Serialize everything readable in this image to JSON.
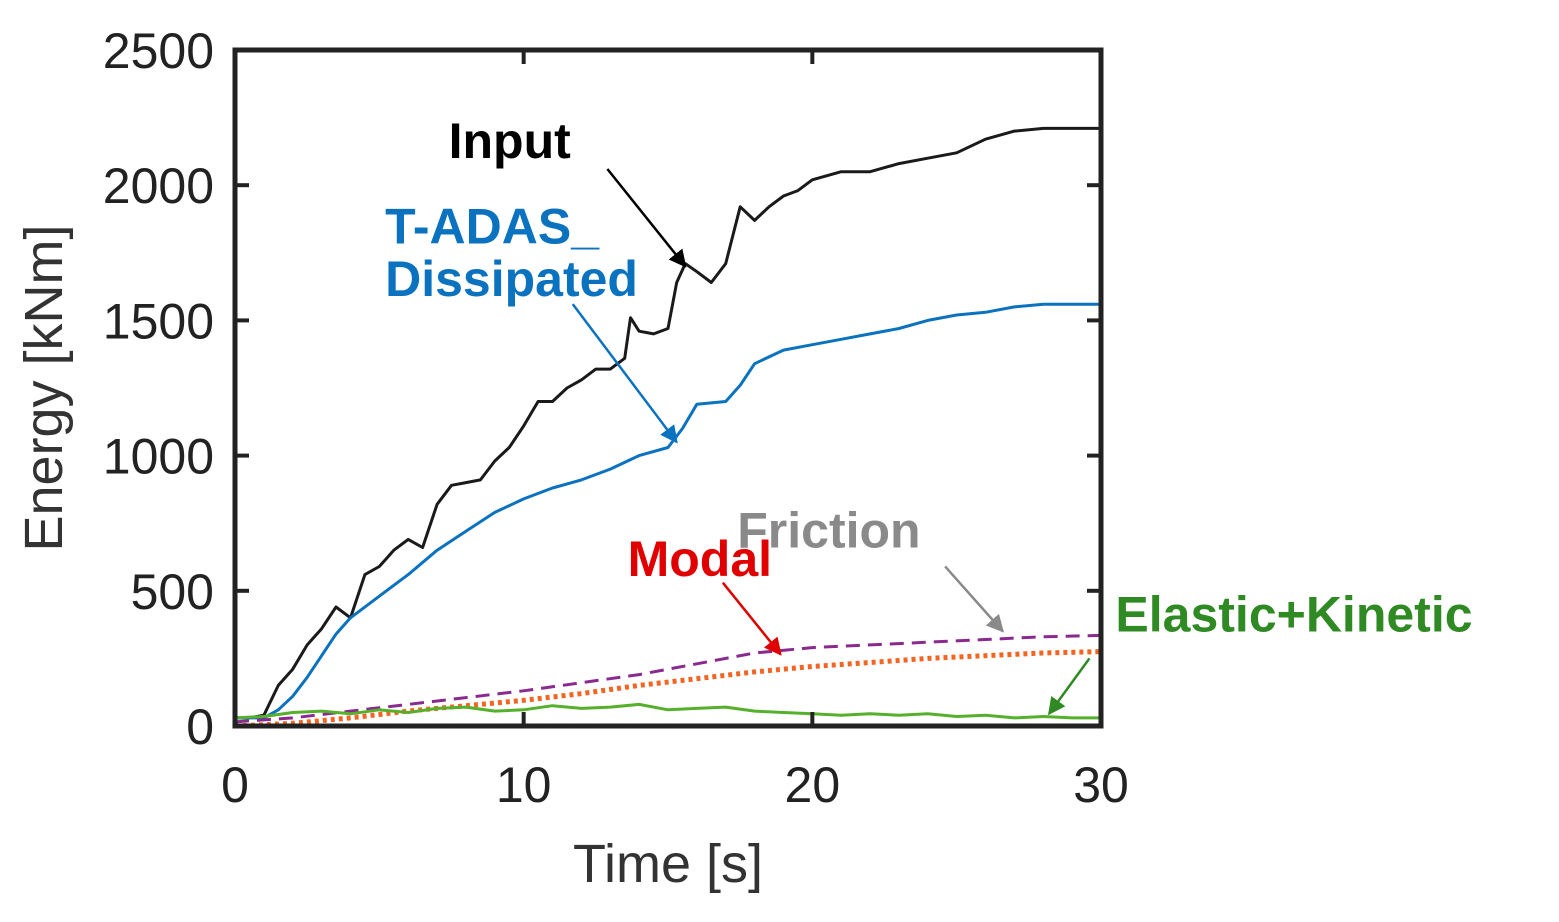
{
  "chart_data": {
    "type": "line",
    "title": "",
    "xlabel": "Time [s]",
    "ylabel": "Energy [kNm]",
    "xlim": [
      0,
      30
    ],
    "ylim": [
      0,
      2500
    ],
    "xticks": [
      0,
      10,
      20,
      30
    ],
    "yticks": [
      0,
      500,
      1000,
      1500,
      2000,
      2500
    ],
    "grid": false,
    "series": [
      {
        "name": "Input",
        "color": "#1a1a1a",
        "style": "solid",
        "x": [
          0,
          0.5,
          1,
          1.5,
          2,
          2.5,
          3,
          3.5,
          4,
          4.5,
          5,
          5.5,
          6,
          6.5,
          7,
          7.5,
          8,
          8.5,
          9,
          9.5,
          10,
          10.5,
          11,
          11.5,
          12,
          12.5,
          13,
          13.5,
          13.7,
          14,
          14.5,
          15,
          15.3,
          15.6,
          16,
          16.5,
          17,
          17.5,
          18,
          18.5,
          19,
          19.5,
          20,
          21,
          22,
          23,
          24,
          25,
          26,
          27,
          28,
          29,
          30
        ],
        "y": [
          30,
          30,
          40,
          150,
          210,
          300,
          360,
          440,
          400,
          560,
          590,
          650,
          690,
          660,
          820,
          890,
          900,
          910,
          980,
          1030,
          1110,
          1200,
          1200,
          1250,
          1280,
          1320,
          1320,
          1360,
          1510,
          1460,
          1450,
          1470,
          1640,
          1710,
          1680,
          1640,
          1710,
          1920,
          1870,
          1920,
          1960,
          1980,
          2020,
          2050,
          2050,
          2080,
          2100,
          2120,
          2170,
          2200,
          2210,
          2210,
          2210
        ]
      },
      {
        "name": "T-ADAS_ Dissipated",
        "color": "#0b72c0",
        "style": "solid",
        "x": [
          0,
          1,
          1.5,
          2,
          2.5,
          3,
          3.5,
          4,
          5,
          6,
          7,
          8,
          9,
          10,
          11,
          12,
          13,
          14,
          15,
          15.5,
          16,
          17,
          17.5,
          18,
          19,
          20,
          21,
          22,
          23,
          24,
          25,
          26,
          27,
          28,
          29,
          30
        ],
        "y": [
          30,
          30,
          60,
          110,
          180,
          260,
          340,
          400,
          480,
          560,
          650,
          720,
          790,
          840,
          880,
          910,
          950,
          1000,
          1030,
          1100,
          1190,
          1200,
          1260,
          1340,
          1390,
          1410,
          1430,
          1450,
          1470,
          1500,
          1520,
          1530,
          1550,
          1560,
          1560,
          1560
        ]
      },
      {
        "name": "Friction",
        "color": "#8b2a8e",
        "style": "dashed",
        "x": [
          0,
          2,
          4,
          6,
          8,
          10,
          12,
          14,
          16,
          18,
          20,
          22,
          24,
          26,
          28,
          30
        ],
        "y": [
          15,
          30,
          55,
          80,
          105,
          130,
          160,
          190,
          230,
          270,
          290,
          300,
          310,
          320,
          330,
          335
        ]
      },
      {
        "name": "Modal",
        "color": "#f26522",
        "style": "dotted",
        "x": [
          0,
          2,
          4,
          6,
          8,
          10,
          12,
          14,
          16,
          18,
          20,
          22,
          24,
          26,
          28,
          30
        ],
        "y": [
          0,
          10,
          30,
          55,
          75,
          95,
          120,
          150,
          175,
          200,
          220,
          235,
          250,
          260,
          270,
          275
        ]
      },
      {
        "name": "Elastic+Kinetic",
        "color": "#55b02b",
        "style": "solid",
        "x": [
          0,
          1,
          2,
          3,
          4,
          5,
          6,
          7,
          8,
          9,
          10,
          11,
          12,
          13,
          14,
          15,
          16,
          17,
          18,
          19,
          20,
          21,
          22,
          23,
          24,
          25,
          26,
          27,
          28,
          29,
          30
        ],
        "y": [
          30,
          35,
          50,
          55,
          45,
          60,
          50,
          65,
          70,
          55,
          60,
          75,
          65,
          70,
          80,
          60,
          65,
          70,
          55,
          50,
          45,
          40,
          45,
          40,
          45,
          35,
          40,
          30,
          35,
          30,
          30
        ]
      }
    ],
    "annotations": [
      {
        "text": "Input",
        "color": "#000000",
        "text_at": [
          7.4,
          2100
        ],
        "arrow_from": [
          12.9,
          2060
        ],
        "arrow_to": [
          15.6,
          1700
        ]
      },
      {
        "text": "T-ADAS_",
        "color": "#0b72c0",
        "text_at": [
          5.2,
          1785
        ],
        "arrow_from": null,
        "arrow_to": null
      },
      {
        "text": "Dissipated",
        "color": "#0b72c0",
        "text_at": [
          5.2,
          1590
        ],
        "arrow_from": [
          11.7,
          1560
        ],
        "arrow_to": [
          15.3,
          1050
        ]
      },
      {
        "text": "Friction",
        "color": "#8a8a8a",
        "text_at": [
          17.4,
          660
        ],
        "arrow_from": [
          24.6,
          590
        ],
        "arrow_to": [
          26.6,
          350
        ]
      },
      {
        "text": "Modal",
        "color": "#e00000",
        "text_at": [
          13.6,
          555
        ],
        "arrow_from": [
          16.9,
          530
        ],
        "arrow_to": [
          18.9,
          265
        ]
      },
      {
        "text": "Elastic+Kinetic",
        "color": "#2f8a24",
        "text_at": [
          30.5,
          350
        ],
        "arrow_from": [
          29.6,
          250
        ],
        "arrow_to": [
          28.2,
          45
        ]
      }
    ]
  }
}
